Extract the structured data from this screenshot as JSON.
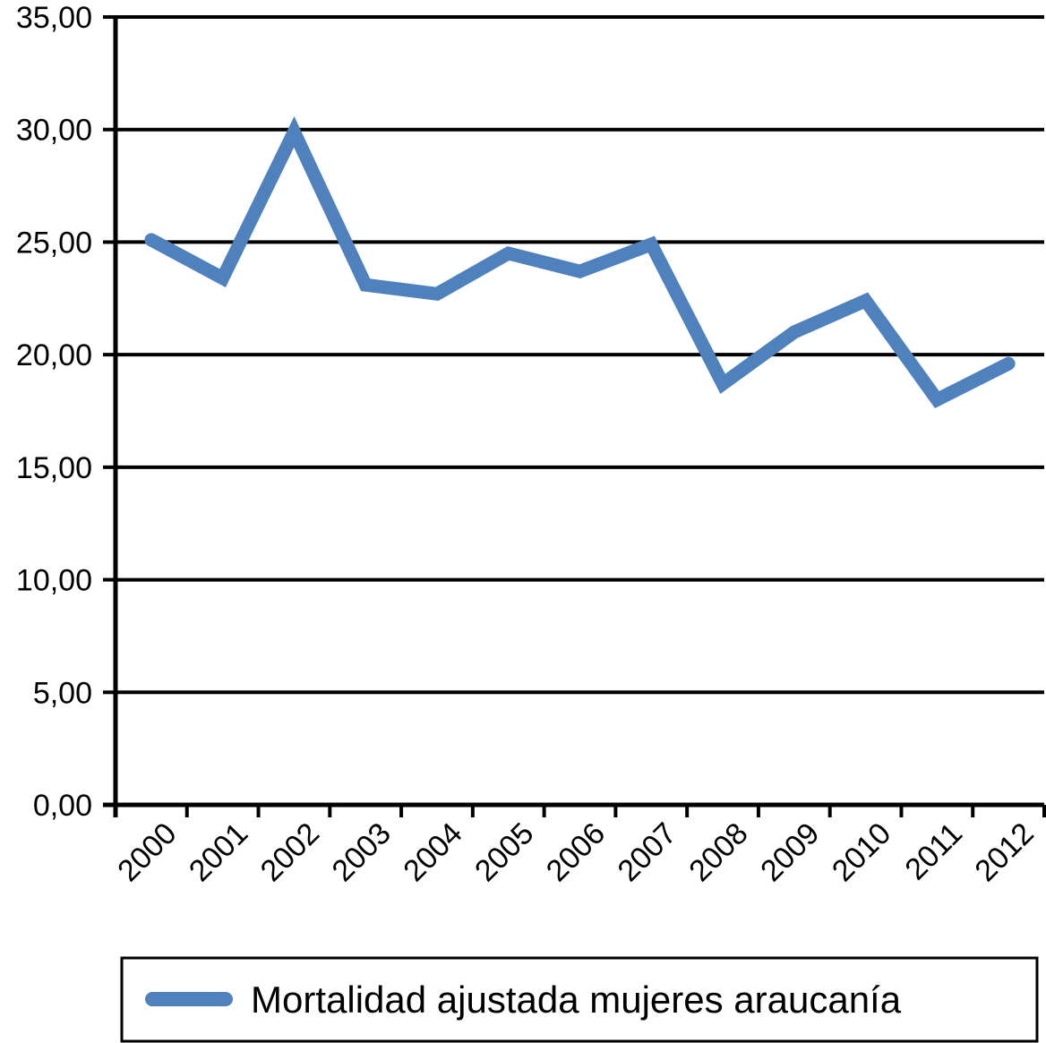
{
  "chart_data": {
    "type": "line",
    "title": "",
    "xlabel": "",
    "ylabel": "",
    "categories": [
      "2000",
      "2001",
      "2002",
      "2003",
      "2004",
      "2005",
      "2006",
      "2007",
      "2008",
      "2009",
      "2010",
      "2011",
      "2012"
    ],
    "series": [
      {
        "name": "Mortalidad ajustada mujeres araucanía",
        "values": [
          25.1,
          23.4,
          29.9,
          23.1,
          22.7,
          24.5,
          23.7,
          24.9,
          18.7,
          21.0,
          22.4,
          18.0,
          19.6
        ],
        "color": "#4f81bd"
      }
    ],
    "ylim": [
      0,
      35
    ],
    "yticks": [
      "0,00",
      "5,00",
      "10,00",
      "15,00",
      "20,00",
      "25,00",
      "30,00",
      "35,00"
    ],
    "ytick_values": [
      0,
      5,
      10,
      15,
      20,
      25,
      30,
      35
    ],
    "grid": true,
    "legend": "bottom",
    "colors": {
      "line": "#4f81bd",
      "grid": "#000000",
      "axis": "#000000"
    }
  }
}
